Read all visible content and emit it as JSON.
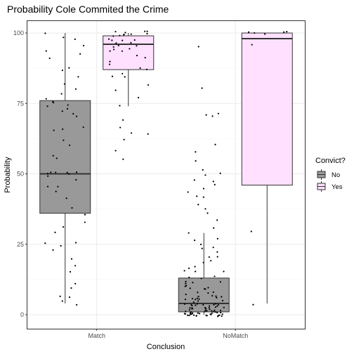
{
  "chart_data": {
    "type": "boxplot",
    "title": "Probability Cole Commited the Crime",
    "xlabel": "Conclusion",
    "ylabel": "Probability",
    "ylim": [
      -3,
      105
    ],
    "yticks": [
      0,
      25,
      50,
      75,
      100
    ],
    "categories": [
      "Match",
      "NoMatch"
    ],
    "grid": true,
    "legend": {
      "title": "Convict?",
      "position": "right",
      "entries": [
        {
          "label": "No",
          "fill": "#999999"
        },
        {
          "label": "Yes",
          "fill": "#ffe0ff"
        }
      ]
    },
    "series": [
      {
        "category": "Match",
        "group": "No",
        "fill": "#999999",
        "stats": {
          "min": 4,
          "q1": 36,
          "median": 50,
          "q3": 76,
          "max": 100
        },
        "points": [
          100,
          99,
          98,
          96,
          94,
          92,
          91,
          88,
          87,
          85,
          82,
          80,
          79,
          77,
          76,
          75,
          74,
          74,
          73,
          72,
          71,
          70,
          67,
          66,
          65,
          62,
          60,
          57,
          55,
          50,
          50,
          50,
          50,
          50,
          50,
          49,
          48,
          46,
          45,
          44,
          41,
          38,
          35,
          33,
          31,
          29,
          26,
          25,
          24,
          23,
          20,
          17,
          15,
          11,
          9,
          7,
          6,
          5,
          4
        ]
      },
      {
        "category": "Match",
        "group": "Yes",
        "fill": "#ffe0ff",
        "stats": {
          "min": 74,
          "q1": 87,
          "median": 96,
          "q3": 99,
          "max": 100
        },
        "points": [
          100,
          100,
          100,
          100,
          100,
          100,
          99,
          99,
          99,
          99,
          98,
          98,
          98,
          97,
          97,
          97,
          96,
          96,
          95,
          95,
          94,
          94,
          93,
          92,
          91,
          90,
          89,
          88,
          87,
          86,
          85,
          84,
          82,
          80,
          77,
          74,
          69,
          67,
          65,
          64,
          62,
          58,
          55
        ]
      },
      {
        "category": "NoMatch",
        "group": "No",
        "fill": "#999999",
        "stats": {
          "min": 0,
          "q1": 1,
          "median": 4,
          "q3": 13,
          "max": 29
        },
        "points": [
          95,
          80,
          72,
          71,
          70,
          61,
          58,
          55,
          52,
          50,
          49,
          48,
          47,
          46,
          45,
          43,
          42,
          42,
          39,
          37,
          36,
          33,
          31,
          29,
          27,
          26,
          25,
          24,
          23,
          22,
          21,
          20,
          19,
          18,
          17,
          17,
          16,
          15,
          15,
          14,
          13,
          13,
          12,
          12,
          11,
          11,
          10,
          10,
          10,
          9,
          9,
          9,
          8,
          8,
          8,
          7,
          7,
          7,
          7,
          6,
          6,
          6,
          6,
          5,
          5,
          5,
          5,
          5,
          4,
          4,
          4,
          4,
          4,
          4,
          3,
          3,
          3,
          3,
          3,
          3,
          3,
          3,
          2,
          2,
          2,
          2,
          2,
          2,
          2,
          2,
          2,
          2,
          1,
          1,
          1,
          1,
          1,
          1,
          1,
          1,
          1,
          1,
          1,
          1,
          1,
          0,
          0,
          0,
          0,
          0,
          0,
          0,
          0,
          0,
          0,
          0,
          0,
          0,
          0,
          0,
          0,
          0,
          0,
          0,
          0,
          0,
          0
        ]
      },
      {
        "category": "NoMatch",
        "group": "Yes",
        "fill": "#ffe0ff",
        "stats": {
          "min": 4,
          "q1": 46,
          "median": 98,
          "q3": 100,
          "max": 100
        },
        "points": [
          100,
          100,
          100,
          100,
          100,
          96,
          29,
          4
        ]
      }
    ]
  }
}
